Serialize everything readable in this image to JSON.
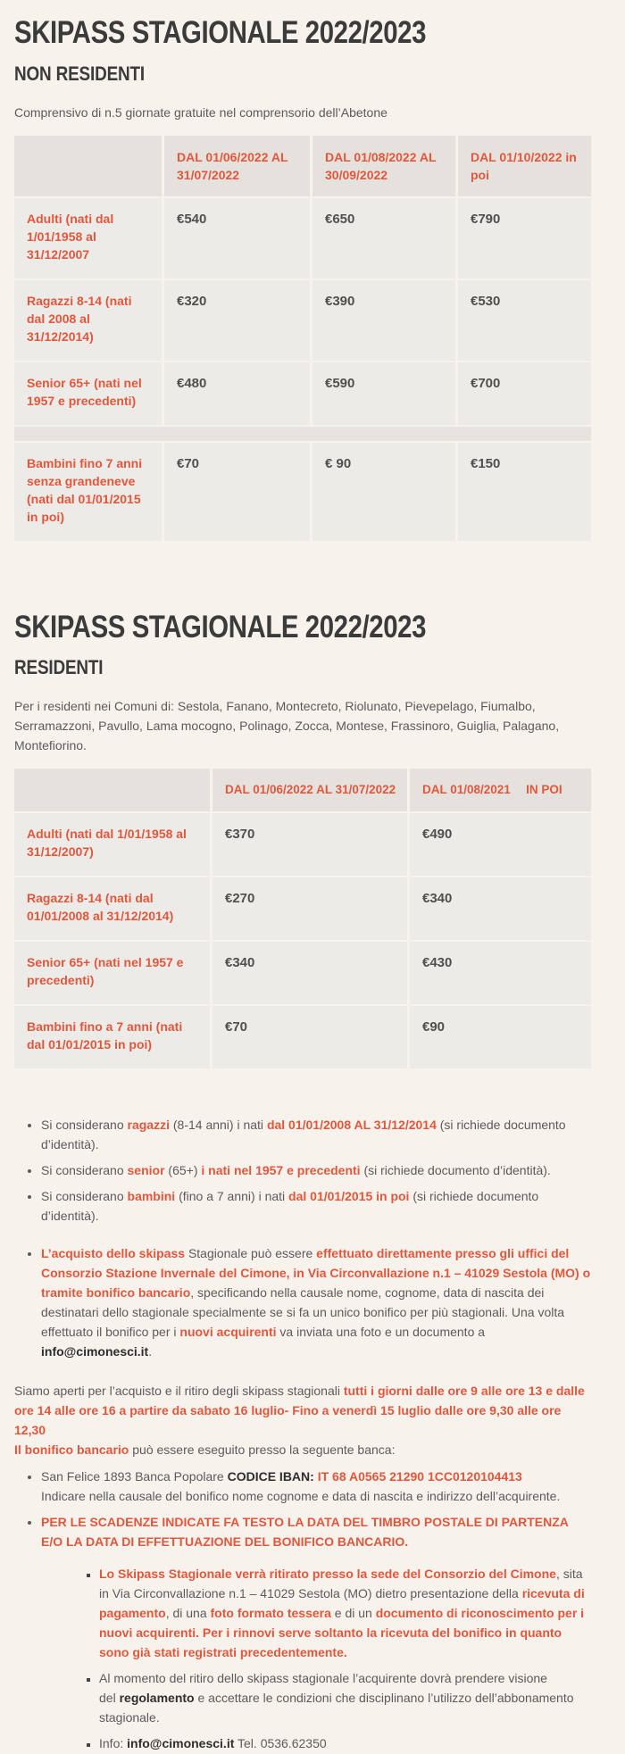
{
  "theme": {
    "accent_orange": "#e2573c",
    "heading_color": "#3b3b3b",
    "body_text_color": "#5b5b5b",
    "page_background": "#f7f2ec",
    "cell_background": "#edebe7",
    "header_cell_background": "#e5e2de"
  },
  "section1": {
    "title": "SKIPASS STAGIONALE 2022/2023",
    "subtitle": "NON RESIDENTI",
    "intro": "Comprensivo di n.5 giornate gratuite nel comprensorio dell’Abetone",
    "table": {
      "headers": [
        "DAL 01/06/2022 AL 31/07/2022",
        "DAL 01/08/2022 AL 30/09/2022",
        "DAL 01/10/2022 in poi"
      ],
      "rows": [
        {
          "label": "Adulti (nati dal 1/01/1958 al 31/12/2007",
          "prices": [
            "€540",
            "€650",
            "€790"
          ]
        },
        {
          "label": "Ragazzi 8-14 (nati dal 2008 al 31/12/2014)",
          "prices": [
            "€320",
            "€390",
            "€530"
          ]
        },
        {
          "label": "Senior 65+ (nati nel 1957 e precedenti)",
          "prices": [
            "€480",
            "€590",
            "€700"
          ]
        },
        {
          "label": "Bambini fino 7 anni senza grandeneve (nati dal 01/01/2015 in poi)",
          "prices": [
            "€70",
            "€ 90",
            "€150"
          ]
        }
      ]
    }
  },
  "section2": {
    "title": "SKIPASS STAGIONALE 2022/2023",
    "subtitle": "RESIDENTI",
    "intro": "Per i residenti nei Comuni di: Sestola, Fanano, Montecreto, Riolunato, Pievepelago, Fiumalbo, Serramazzoni, Pavullo, Lama mocogno, Polinago, Zocca, Montese, Frassinoro, Guiglia, Palagano, Montefiorino.",
    "table": {
      "headers": [
        "DAL 01/06/2022 AL 31/07/2022",
        "DAL 01/08/2021  IN POI"
      ],
      "rows": [
        {
          "label": "Adulti (nati dal 1/01/1958 al 31/12/2007)",
          "prices": [
            "€370",
            "€490"
          ]
        },
        {
          "label": "Ragazzi 8-14 (nati dal 01/01/2008 al 31/12/2014)",
          "prices": [
            "€270",
            "€340"
          ]
        },
        {
          "label": "Senior 65+ (nati nel 1957  e precedenti)",
          "prices": [
            "€340",
            "€430"
          ]
        },
        {
          "label": "Bambini fino a 7 anni  (nati dal 01/01/2015 in poi)",
          "prices": [
            "€70",
            "€90"
          ]
        }
      ]
    }
  },
  "notes": {
    "considerations": [
      [
        {
          "t": "Si considerano ",
          "s": "n"
        },
        {
          "t": "ragazzi",
          "s": "o"
        },
        {
          "t": " (8-14 anni) i nati ",
          "s": "n"
        },
        {
          "t": " dal 01/01/2008 AL 31/12/2014 ",
          "s": "o"
        },
        {
          "t": " (si richiede documento d’identità).",
          "s": "n"
        }
      ],
      [
        {
          "t": "Si considerano ",
          "s": "n"
        },
        {
          "t": "senior",
          "s": "o"
        },
        {
          "t": " (65+) ",
          "s": "n"
        },
        {
          "t": " i nati nel 1957 e precedenti",
          "s": "o"
        },
        {
          "t": " (si richiede documento d’identità).",
          "s": "n"
        }
      ],
      [
        {
          "t": "Si considerano ",
          "s": "n"
        },
        {
          "t": "bambini",
          "s": "o"
        },
        {
          "t": " (fino a 7 anni) i nati ",
          "s": "n"
        },
        {
          "t": " dal 01/01/2015 in poi",
          "s": "o"
        },
        {
          "t": " (si richiede documento d’identità).",
          "s": "n"
        }
      ]
    ],
    "purchase": [
      {
        "t": "L’acquisto dello skipass",
        "s": "o"
      },
      {
        "t": " Stagionale può essere ",
        "s": "n"
      },
      {
        "t": "effettuato direttamente presso gli uffici del Consorzio Stazione Invernale del Cimone, in Via Circonvallazione n.1 –  41029 Sestola (MO) o tramite bonifico bancario",
        "s": "o"
      },
      {
        "t": ", specificando nella causale  nome, cognome, data di nascita dei destinatari dello stagionale specialmente se si fa un unico bonifico per più stagionali. Una volta effettuato il bonifico per i ",
        "s": "n"
      },
      {
        "t": "nuovi acquirenti",
        "s": "o"
      },
      {
        "t": " va inviata una foto e un documento  a ",
        "s": "n"
      },
      {
        "t": "info@cimonesci.it",
        "s": "d",
        "name": "email-link",
        "link": true
      },
      {
        "t": ".",
        "s": "n"
      }
    ],
    "opening": [
      {
        "t": "Siamo aperti  per l’acquisto e il ritiro degli skipass stagionali ",
        "s": "n"
      },
      {
        "t": "tutti i giorni dalle ore 9 alle ore 13 e dalle ore 14 alle ore 16 a partire  da sabato 16 luglio-  Fino a venerdì 15 luglio dalle ore 9,30 alle ore 12,30",
        "s": "o"
      },
      {
        "br": true
      },
      {
        "t": "Il bonifico bancario",
        "s": "o"
      },
      {
        "t": " può essere eseguito presso la seguente banca:",
        "s": "n"
      }
    ],
    "bank": [
      [
        {
          "t": "San Felice 1893 Banca Popolare  ",
          "s": "n"
        },
        {
          "t": "CODICE IBAN: ",
          "s": "d"
        },
        {
          "t": "IT 68 A0565 21290 1CC0120104413",
          "s": "o"
        },
        {
          "br": true
        },
        {
          "t": "Indicare nella causale del bonifico nome cognome e data di nascita e indirizzo dell’acquirente.",
          "s": "n"
        }
      ],
      [
        {
          "t": "PER LE SCADENZE  INDICATE FA TESTO LA DATA DEL TIMBRO POSTALE DI PARTENZA E/O LA DATA DI EFFETTUAZIONE DEL BONIFICO BANCARIO.",
          "s": "o"
        }
      ]
    ],
    "pickup": [
      [
        {
          "t": "Lo Skipass Stagionale verrà ritirato presso la sede del Consorzio del Cimone",
          "s": "o"
        },
        {
          "t": ", sita in Via Circonvallazione n.1 –  41029 Sestola (MO) dietro presentazione della ",
          "s": "n"
        },
        {
          "t": "ricevuta di pagamento",
          "s": "o"
        },
        {
          "t": ", di una ",
          "s": "n"
        },
        {
          "t": "foto formato tessera",
          "s": "o"
        },
        {
          "t": " e di un ",
          "s": "n"
        },
        {
          "t": "documento di riconoscimento per i nuovi acquirenti. Per i rinnovi serve soltanto la ricevuta del bonifico in quanto sono già stati registrati precedentemente.",
          "s": "o"
        }
      ],
      [
        {
          "t": "Al momento del ritiro dello skipass stagionale l’acquirente dovrà prendere visione",
          "s": "n"
        },
        {
          "br": true
        },
        {
          "t": "del ",
          "s": "n"
        },
        {
          "t": "regolamento",
          "s": "d",
          "name": "regolamento-link",
          "link": true
        },
        {
          "t": " e accettare le condizioni che disciplinano l’utilizzo dell’abbonamento stagionale.",
          "s": "n"
        }
      ],
      [
        {
          "t": "Info: ",
          "s": "n"
        },
        {
          "t": "info@cimonesci.it",
          "s": "d",
          "name": "email-link",
          "link": true
        },
        {
          "t": " Tel. 0536.62350",
          "s": "n"
        }
      ]
    ]
  }
}
